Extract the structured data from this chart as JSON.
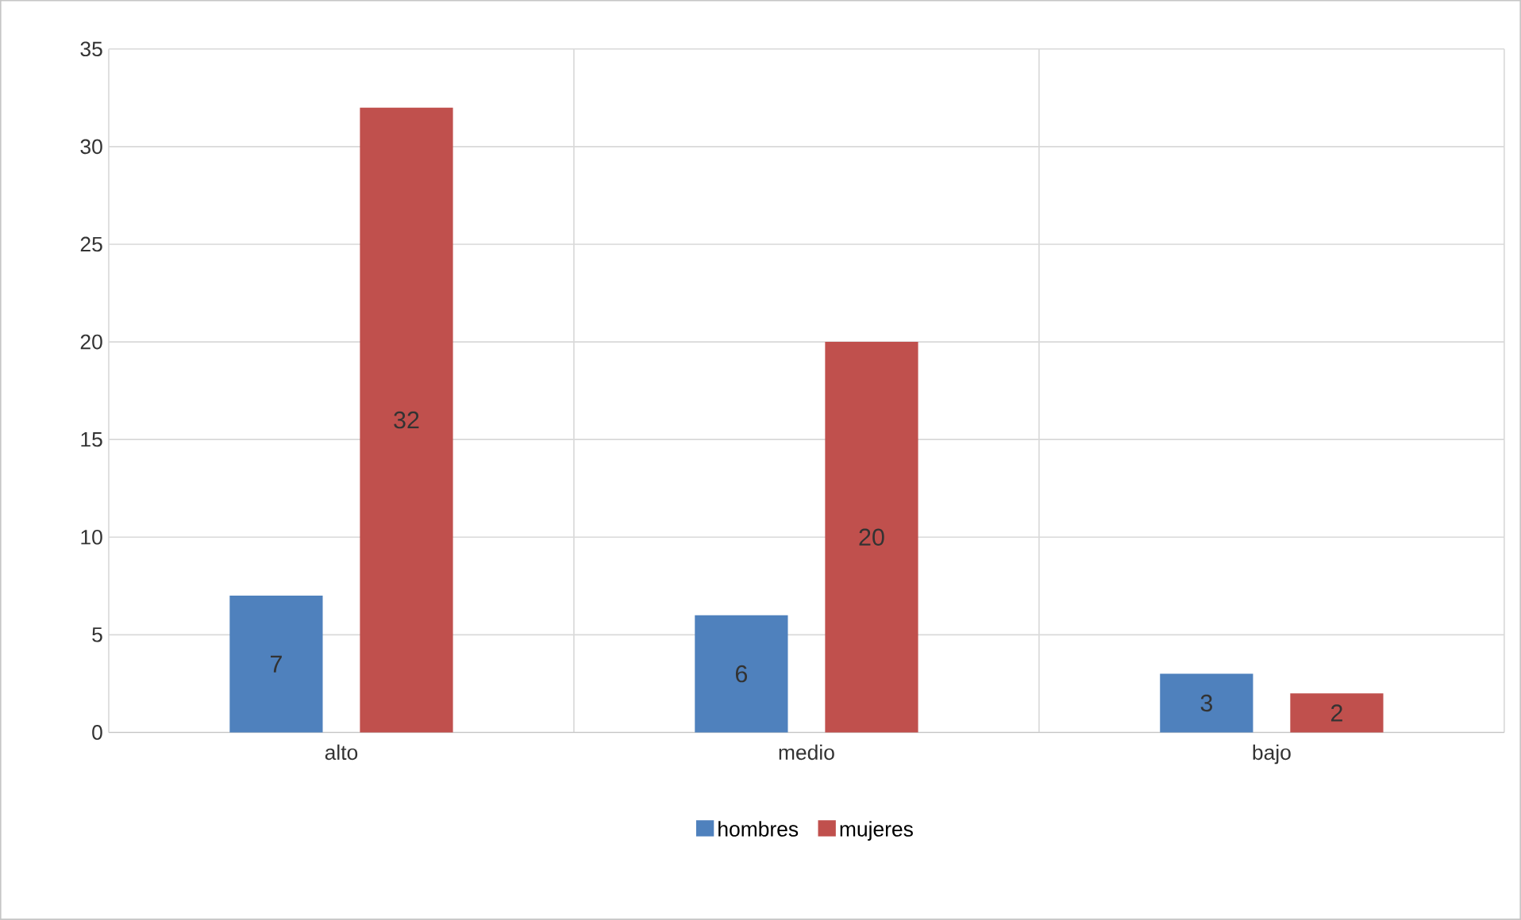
{
  "chart_data": {
    "type": "bar",
    "categories": [
      "alto",
      "medio",
      "bajo"
    ],
    "series": [
      {
        "name": "hombres",
        "color": "#4f81bd",
        "values": [
          7,
          6,
          3
        ]
      },
      {
        "name": "mujeres",
        "color": "#c0504d",
        "values": [
          32,
          20,
          2
        ]
      }
    ],
    "ylim": [
      0,
      35
    ],
    "yticks": [
      0,
      5,
      10,
      15,
      20,
      25,
      30,
      35
    ],
    "grid": true,
    "legend": "bottom",
    "data_labels": true
  }
}
